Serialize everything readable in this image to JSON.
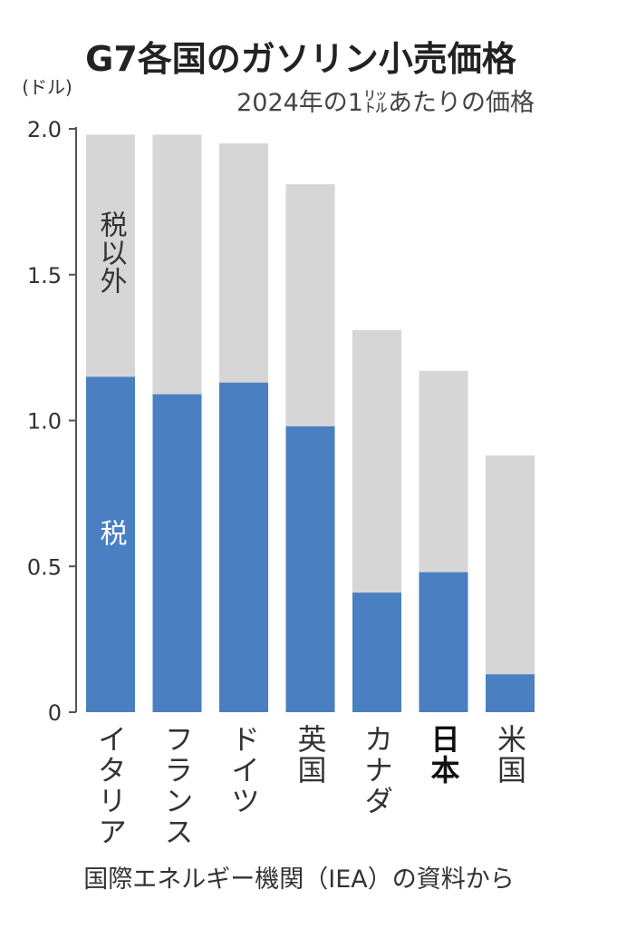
{
  "chart_data": {
    "type": "bar",
    "stacked": true,
    "title": "G7各国のガソリン小売価格",
    "subtitle": "2024年の1㍑あたりの価格",
    "y_unit": "(ドル)",
    "ylim": [
      0,
      2.0
    ],
    "yticks": [
      0,
      0.5,
      1.0,
      1.5,
      2.0
    ],
    "ytick_labels": [
      "0",
      "0.5",
      "1.0",
      "1.5",
      "2.0"
    ],
    "categories": [
      "イタリア",
      "フランス",
      "ドイツ",
      "英国",
      "カナダ",
      "日本",
      "米国"
    ],
    "highlight_category": "日本",
    "series": [
      {
        "name": "税",
        "color": "#4a7fc1",
        "values": [
          1.15,
          1.09,
          1.13,
          0.98,
          0.41,
          0.48,
          0.13
        ]
      },
      {
        "name": "税以外",
        "color": "#d6d6d6",
        "values": [
          0.83,
          0.89,
          0.82,
          0.83,
          0.9,
          0.69,
          0.75
        ]
      }
    ],
    "source": "国際エネルギー機関（IEA）の資料から",
    "grid": false,
    "legend": "inside first bar"
  }
}
